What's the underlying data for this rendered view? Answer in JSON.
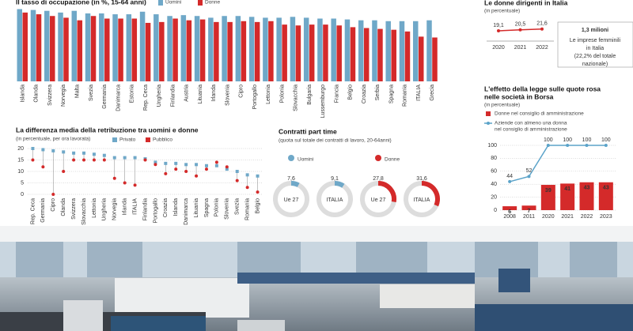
{
  "chart_data": [
    {
      "type": "bar",
      "title": "Il tasso di occupazione (in %, 15-64 anni)",
      "categories": [
        "Islanda",
        "Olanda",
        "Svizzera",
        "Norvegia",
        "Malta",
        "Svezia",
        "Germania",
        "Danimarca",
        "Estonia",
        "Rep. Ceca",
        "Ungheria",
        "Finlandia",
        "Austria",
        "Lituania",
        "Irlanda",
        "Slovenia",
        "Cipro",
        "Portogallo",
        "Lettonia",
        "Polonia",
        "Slovacchia",
        "Bulgaria",
        "Lussemburgo",
        "Francia",
        "Belgio",
        "Croazia",
        "Serbia",
        "Spagna",
        "Romania",
        "ITALIA",
        "Grecia"
      ],
      "series": [
        {
          "name": "Uomini",
          "color": "#6fa8c8",
          "values": [
            84,
            83,
            82,
            80,
            82,
            79,
            79,
            78,
            78,
            81,
            78,
            76,
            77,
            76,
            74,
            76,
            76,
            75,
            74,
            74,
            75,
            74,
            73,
            73,
            72,
            71,
            71,
            70,
            70,
            70,
            71
          ]
        },
        {
          "name": "Donne",
          "color": "#d42a2a",
          "values": [
            80,
            78,
            76,
            74,
            71,
            76,
            73,
            73,
            73,
            68,
            69,
            73,
            71,
            72,
            69,
            69,
            70,
            69,
            70,
            66,
            65,
            66,
            66,
            65,
            63,
            62,
            61,
            60,
            58,
            52,
            51
          ]
        }
      ],
      "ylim": [
        0,
        90
      ]
    },
    {
      "type": "dumbbell",
      "title": "La differenza media della retribuzione tra uomini e donne",
      "subtitle": "(in percentuale, per ora lavorata)",
      "categories": [
        "Rep. Ceca",
        "Germania",
        "Cipro",
        "Olanda",
        "Svizzera",
        "Slovacchia",
        "Lettonia",
        "Ungheria",
        "Norvegia",
        "Irlanda",
        "ITALIA",
        "Finlandia",
        "Portogallo",
        "Croazia",
        "Islanda",
        "Danimarca",
        "Lituania",
        "Spagna",
        "Polonia",
        "Slovenia",
        "Svezia",
        "Romania",
        "Belgio"
      ],
      "series": [
        {
          "name": "Privato",
          "color": "#6fa8c8",
          "values": [
            20,
            19.5,
            19,
            18.5,
            18,
            18,
            17.5,
            17,
            16,
            16,
            16,
            15.5,
            14,
            13.5,
            13.5,
            13,
            13,
            12.5,
            12.5,
            11,
            10,
            8.5,
            8
          ]
        },
        {
          "name": "Pubblico",
          "color": "#d42a2a",
          "values": [
            15,
            12,
            0,
            10,
            15,
            15,
            15,
            15,
            7,
            5,
            4,
            15,
            13,
            9,
            11,
            10,
            8,
            11,
            14,
            12,
            6,
            3,
            1
          ]
        }
      ],
      "ylim": [
        0,
        20
      ],
      "yticks": [
        0,
        5,
        10,
        15,
        20
      ],
      "grid": true
    },
    {
      "type": "donut",
      "title": "Contratti part time",
      "subtitle": "(quota sul totale dei contratti di lavoro, 20-64anni)",
      "categories": [
        "Ue 27",
        "ITALIA"
      ],
      "series": [
        {
          "name": "Uomini",
          "color": "#6fa8c8",
          "values": [
            7.6,
            9.1
          ],
          "value_labels": [
            "7,6",
            "9,1"
          ]
        },
        {
          "name": "Donne",
          "color": "#d42a2a",
          "values": [
            27.8,
            31.6
          ],
          "value_labels": [
            "27,8",
            "31,6"
          ]
        }
      ]
    },
    {
      "type": "line",
      "title": "Le donne dirigenti in Italia",
      "subtitle": "(in percentuale)",
      "x": [
        2020,
        2021,
        2022
      ],
      "series": [
        {
          "color": "#d42a2a",
          "values": [
            19.1,
            20.5,
            21.6
          ],
          "value_labels": [
            "19,1",
            "20,5",
            "21,6"
          ]
        }
      ],
      "ylim": [
        5,
        30
      ],
      "annotations": [
        "1,3 milioni",
        "Le imprese femminili",
        "in Italia",
        "(22,2% del totale",
        "nazionale)"
      ]
    },
    {
      "type": "combo",
      "title": [
        "L'effetto della legge sulle quote rosa",
        "nelle società in Borsa"
      ],
      "subtitle": "(in percentuale)",
      "categories": [
        "2008",
        "2011",
        "2020",
        "2021",
        "2022",
        "2023"
      ],
      "series": [
        {
          "name": "Donne nel consiglio di amministrazione",
          "type": "bar",
          "color": "#d42a2a",
          "values": [
            6,
            7,
            39,
            41,
            43,
            43
          ]
        },
        {
          "name": [
            "Aziende con almeno una donna",
            "nel consiglio di amministrazione"
          ],
          "type": "line",
          "color": "#5ba3c9",
          "values": [
            44,
            52,
            100,
            100,
            100,
            100
          ]
        }
      ],
      "ylim": [
        0,
        100
      ],
      "yticks": [
        0,
        20,
        40,
        60,
        80,
        100
      ],
      "grid": true
    }
  ]
}
